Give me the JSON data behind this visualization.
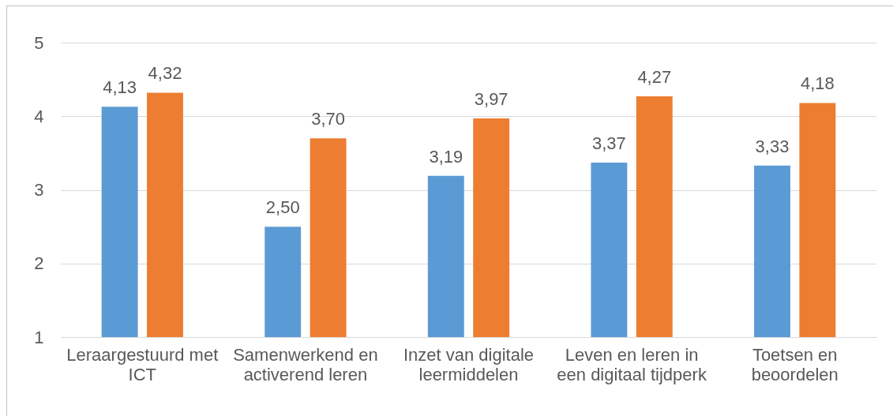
{
  "chart_data": {
    "type": "bar",
    "categories": [
      "Leraargestuurd met ICT",
      "Samenwerkend en activerend leren",
      "Inzet van digitale leermiddelen",
      "Leven en leren in een digitaal tijdperk",
      "Toetsen en beoordelen"
    ],
    "series": [
      {
        "color": "#5b9bd5",
        "values": [
          4.13,
          2.5,
          3.19,
          3.37,
          3.33
        ],
        "value_labels": [
          "4,13",
          "2,50",
          "3,19",
          "3,37",
          "3,33"
        ]
      },
      {
        "color": "#ed7d31",
        "values": [
          4.32,
          3.7,
          3.97,
          4.27,
          4.18
        ],
        "value_labels": [
          "4,32",
          "3,70",
          "3,97",
          "4,27",
          "4,18"
        ]
      }
    ],
    "ylim": [
      1,
      5
    ],
    "yticks": [
      1,
      2,
      3,
      4,
      5
    ],
    "grid": "y"
  }
}
